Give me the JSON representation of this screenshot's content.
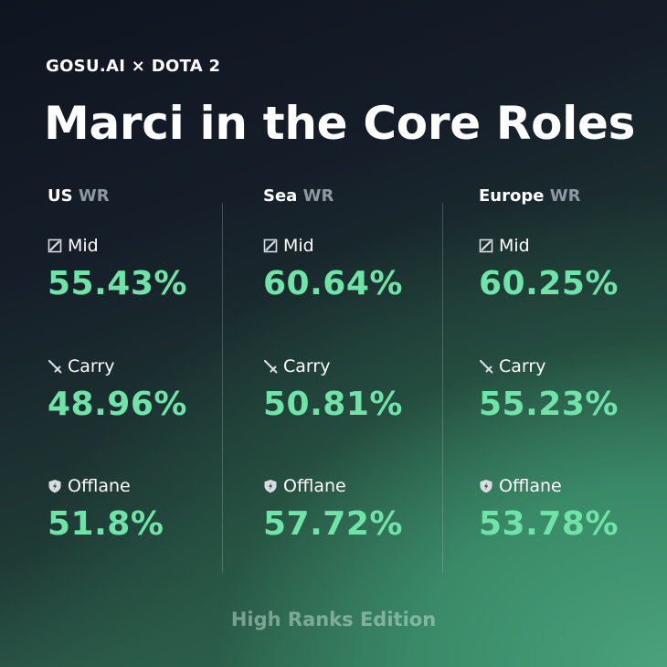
{
  "header": {
    "brand": "GOSU.AI × DOTA 2",
    "title": "Marci in the Core Roles"
  },
  "columns": [
    {
      "region": "US",
      "suffix": "WR",
      "roles": [
        {
          "icon": "mid-lane-icon",
          "label": "Mid",
          "value": "55.43%"
        },
        {
          "icon": "sword-icon",
          "label": "Carry",
          "value": "48.96%"
        },
        {
          "icon": "shield-icon",
          "label": "Offlane",
          "value": "51.8%"
        }
      ]
    },
    {
      "region": "Sea",
      "suffix": "WR",
      "roles": [
        {
          "icon": "mid-lane-icon",
          "label": "Mid",
          "value": "60.64%"
        },
        {
          "icon": "sword-icon",
          "label": "Carry",
          "value": "50.81%"
        },
        {
          "icon": "shield-icon",
          "label": "Offlane",
          "value": "57.72%"
        }
      ]
    },
    {
      "region": "Europe",
      "suffix": "WR",
      "roles": [
        {
          "icon": "mid-lane-icon",
          "label": "Mid",
          "value": "60.25%"
        },
        {
          "icon": "sword-icon",
          "label": "Carry",
          "value": "55.23%"
        },
        {
          "icon": "shield-icon",
          "label": "Offlane",
          "value": "53.78%"
        }
      ]
    }
  ],
  "footer": {
    "text": "High Ranks Edition"
  },
  "colors": {
    "accent": "#6fe3a8",
    "muted": "#8e98a0",
    "background_top": "#0f1520",
    "background_bottom": "#4aa27c"
  }
}
